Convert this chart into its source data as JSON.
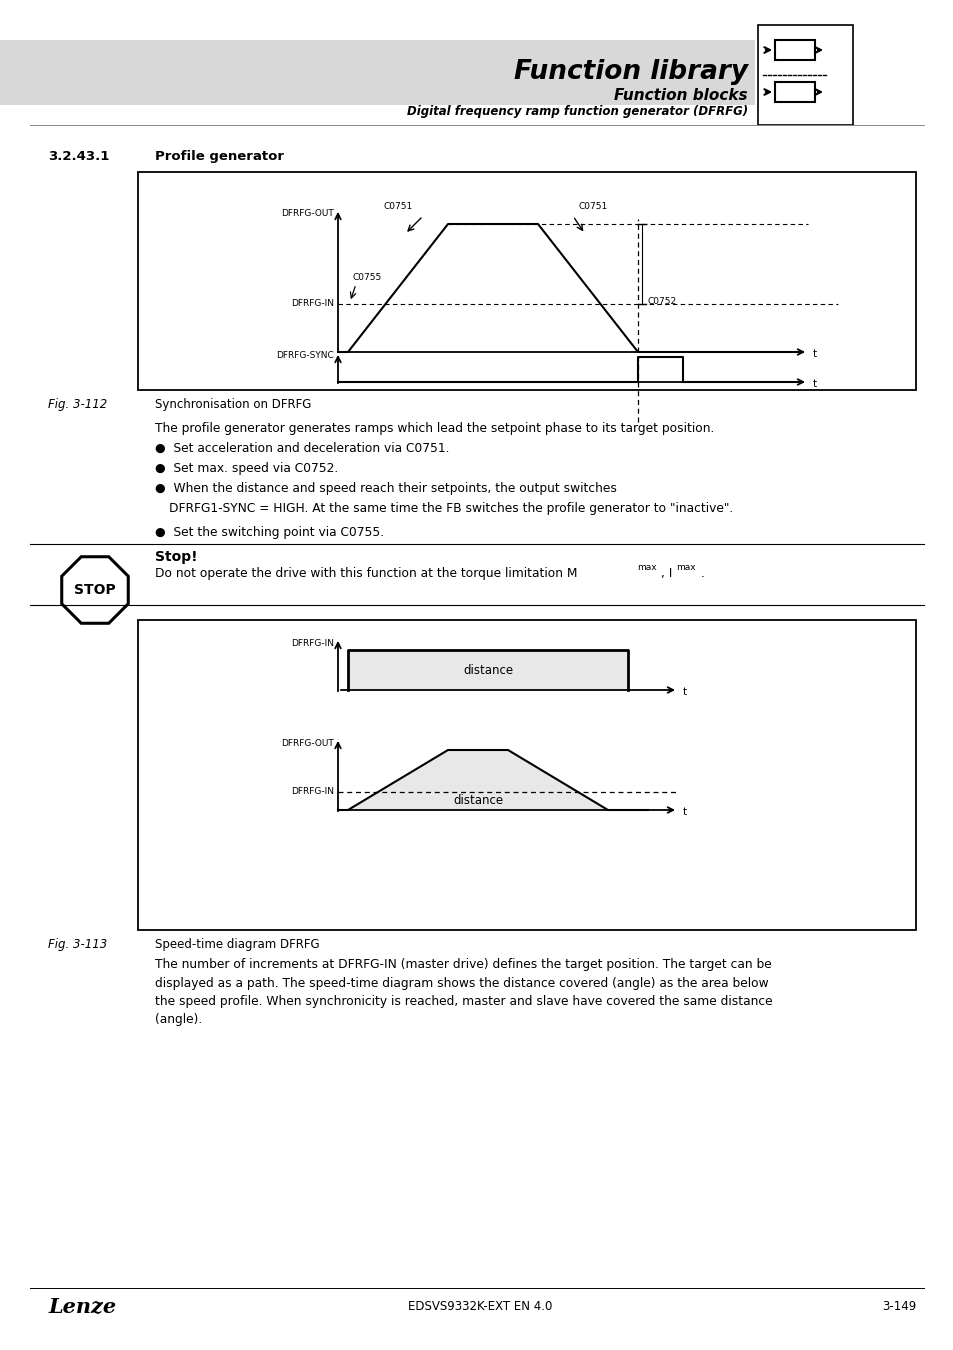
{
  "page_bg": "#ffffff",
  "header_bg": "#d8d8d8",
  "title_text": "Function library",
  "subtitle1": "Function blocks",
  "subtitle2": "Digital frequency ramp function generator (DFRFG)",
  "section_num": "3.2.43.1",
  "section_title": "Profile generator",
  "fig112_label": "Fig. 3-112",
  "fig112_caption": "Synchronisation on DFRFG",
  "fig113_label": "Fig. 3-113",
  "fig113_caption": "Speed-time diagram DFRFG",
  "bullet1": "Set acceleration and deceleration via C0751.",
  "bullet2": "Set max. speed via C0752.",
  "bullet3a": "When the distance and speed reach their setpoints, the output switches",
  "bullet3b": "DFRFG1-SYNC = HIGH. At the same time the FB switches the profile generator to \"inactive\".",
  "bullet4": "Set the switching point via C0755.",
  "stop_title": "Stop!",
  "stop_body": "Do not operate the drive with this function at the torque limitation M",
  "footer_left": "Lenze",
  "footer_center": "EDSVS9332K-EXT EN 4.0",
  "footer_right": "3-149",
  "text_color": "#000000",
  "fill_color": "#e8e8e8"
}
